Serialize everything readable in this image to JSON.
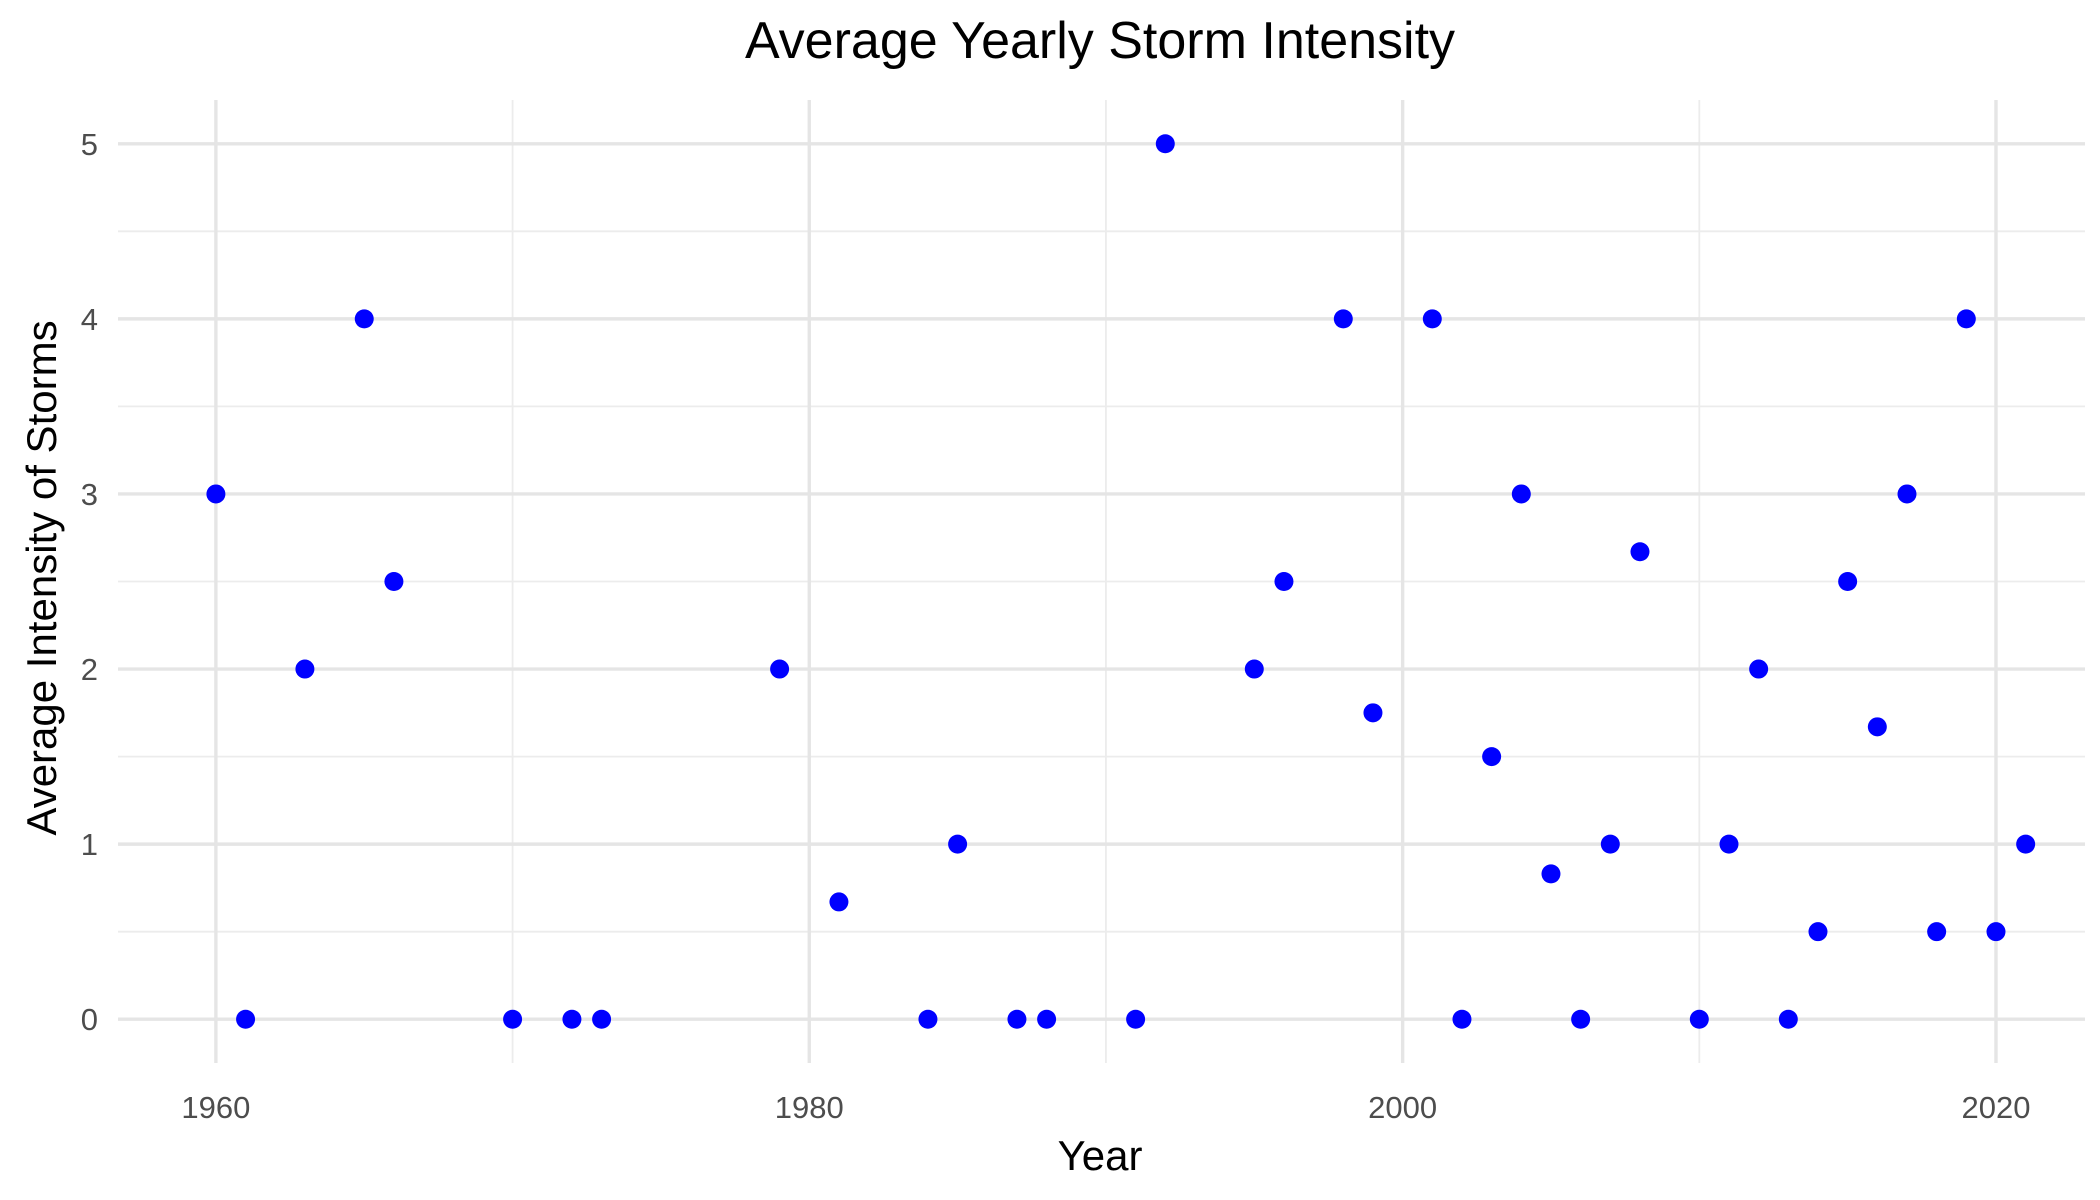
{
  "chart_data": {
    "type": "scatter",
    "title": "Average Yearly Storm Intensity",
    "xlabel": "Year",
    "ylabel": "Average Intensity of Storms",
    "xlim": [
      1956.7,
      1523.0
    ],
    "ylim": [
      -0.25,
      5.25
    ],
    "x_major_ticks": [
      1960,
      1980,
      2000,
      2020
    ],
    "x_minor_ticks": [
      1970,
      1990,
      2010
    ],
    "y_major_ticks": [
      0,
      1,
      2,
      3,
      4,
      5
    ],
    "y_minor_ticks": [
      0.5,
      1.5,
      2.5,
      3.5,
      4.5
    ],
    "x_tick_labels": [
      "1960",
      "1980",
      "2000",
      "2020"
    ],
    "y_tick_labels": [
      "0",
      "1",
      "2",
      "3",
      "4",
      "5"
    ],
    "grid": true,
    "legend": "none",
    "point_color": "#0000ff",
    "series": [
      {
        "points": [
          {
            "x": 1960,
            "y": 3
          },
          {
            "x": 1961,
            "y": 0
          },
          {
            "x": 1963,
            "y": 2
          },
          {
            "x": 1965,
            "y": 4
          },
          {
            "x": 1966,
            "y": 2.5
          },
          {
            "x": 1970,
            "y": 0
          },
          {
            "x": 1972,
            "y": 0
          },
          {
            "x": 1973,
            "y": 0
          },
          {
            "x": 1979,
            "y": 2
          },
          {
            "x": 1981,
            "y": 0.67
          },
          {
            "x": 1984,
            "y": 0
          },
          {
            "x": 1985,
            "y": 1
          },
          {
            "x": 1987,
            "y": 0
          },
          {
            "x": 1988,
            "y": 0
          },
          {
            "x": 1991,
            "y": 0
          },
          {
            "x": 1992,
            "y": 5
          },
          {
            "x": 1995,
            "y": 2
          },
          {
            "x": 1996,
            "y": 2.5
          },
          {
            "x": 1998,
            "y": 4
          },
          {
            "x": 1999,
            "y": 1.75
          },
          {
            "x": 2001,
            "y": 4
          },
          {
            "x": 2002,
            "y": 0
          },
          {
            "x": 2003,
            "y": 1.5
          },
          {
            "x": 2004,
            "y": 3
          },
          {
            "x": 2005,
            "y": 0.83
          },
          {
            "x": 2006,
            "y": 0
          },
          {
            "x": 2007,
            "y": 1
          },
          {
            "x": 2008,
            "y": 2.67
          },
          {
            "x": 2010,
            "y": 0
          },
          {
            "x": 2011,
            "y": 1
          },
          {
            "x": 2012,
            "y": 2
          },
          {
            "x": 2013,
            "y": 0
          },
          {
            "x": 2014,
            "y": 0.5
          },
          {
            "x": 2015,
            "y": 2.5
          },
          {
            "x": 2016,
            "y": 1.67
          },
          {
            "x": 2017,
            "y": 3
          },
          {
            "x": 2018,
            "y": 0.5
          },
          {
            "x": 2019,
            "y": 4
          },
          {
            "x": 2020,
            "y": 0.5
          },
          {
            "x": 2021,
            "y": 1
          }
        ]
      }
    ]
  }
}
